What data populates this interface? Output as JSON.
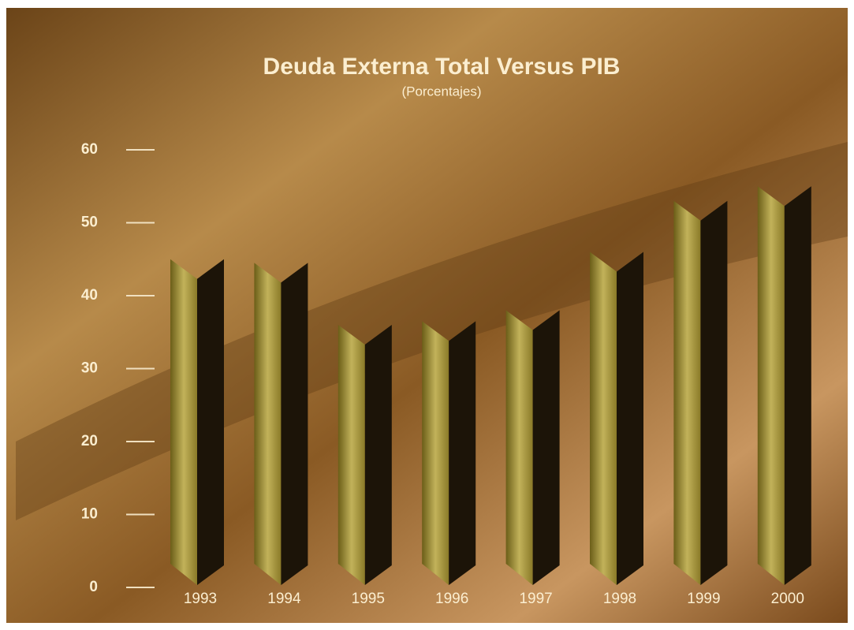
{
  "chart_data": {
    "type": "bar",
    "title": "Deuda Externa Total Versus PIB",
    "subtitle": "(Porcentajes)",
    "categories": [
      "1993",
      "1994",
      "1995",
      "1996",
      "1997",
      "1998",
      "1999",
      "2000"
    ],
    "values": [
      45,
      44.5,
      36,
      36.5,
      38,
      46,
      53,
      55
    ],
    "color": "#9a8a2e",
    "ylim": [
      0,
      60
    ],
    "yticks": [
      0,
      10,
      20,
      30,
      40,
      50,
      60
    ],
    "grid": false
  }
}
